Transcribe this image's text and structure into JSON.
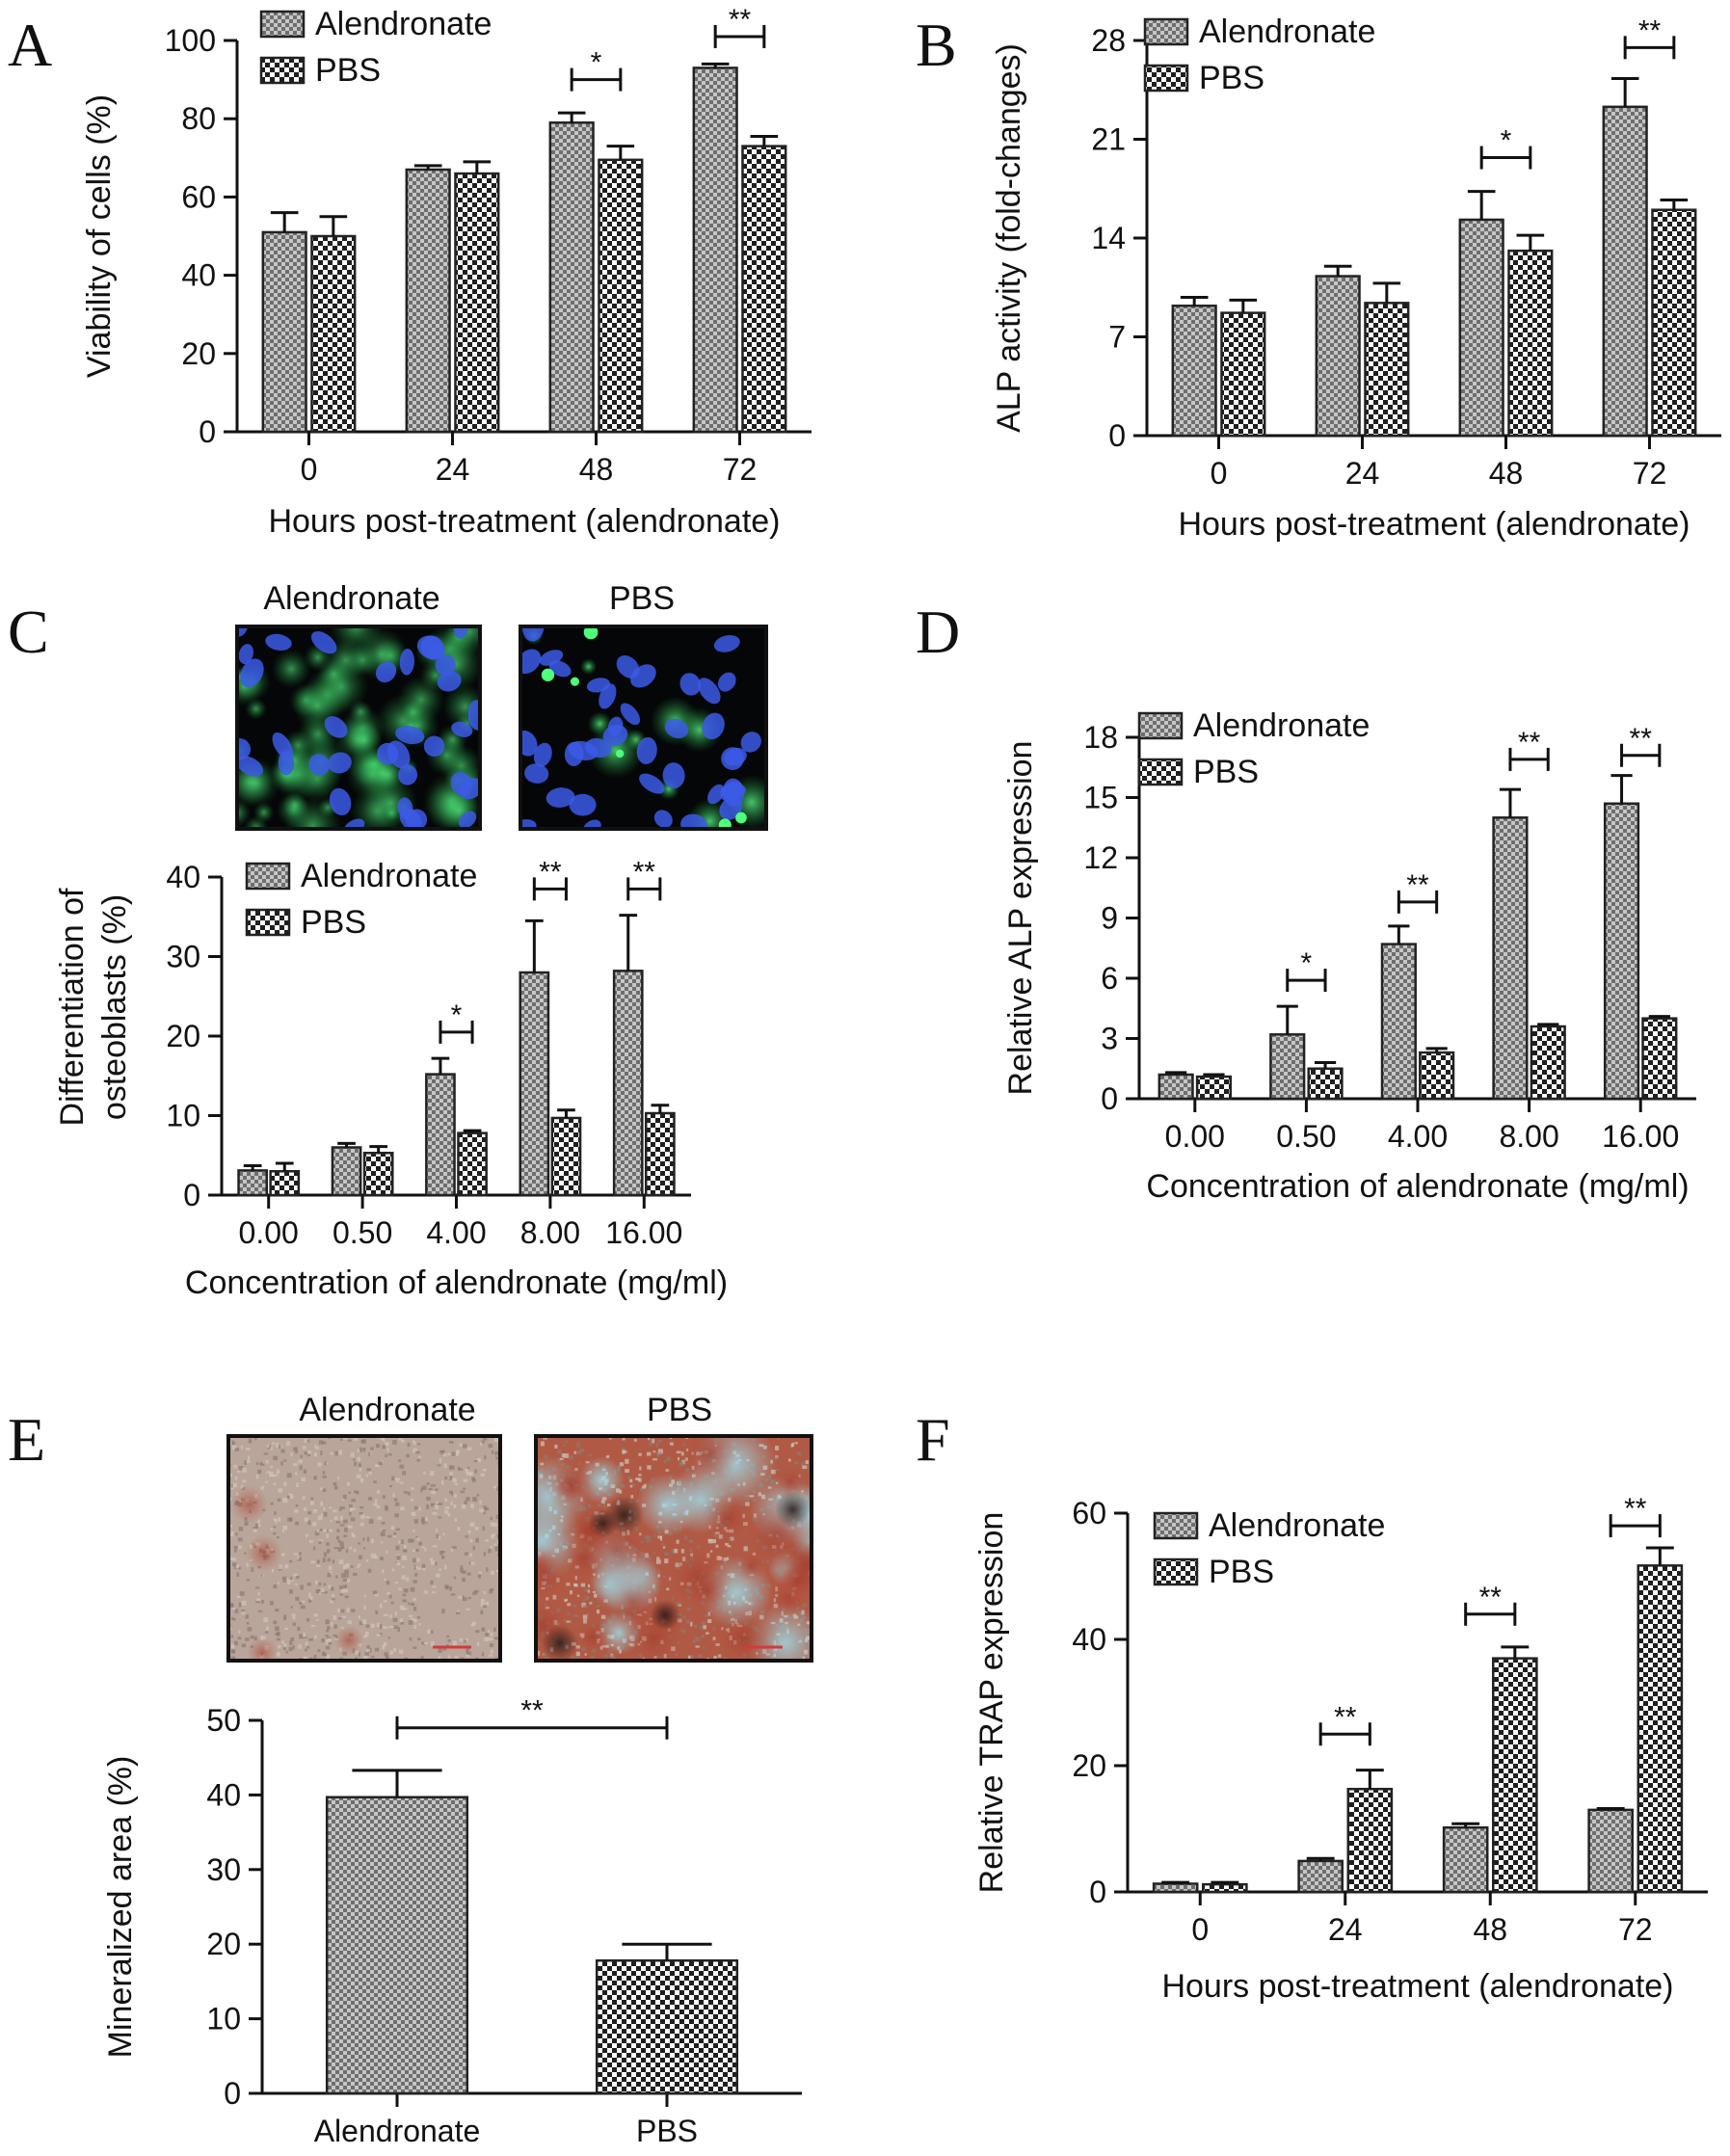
{
  "colors": {
    "axis": "#111111",
    "bar_outline": "#222222",
    "alendronate_fill": "#9a9a9a",
    "pbs_fill": "#ffffff",
    "pbs_check": "#222222"
  },
  "micrographs": {
    "C": {
      "left_label": "Alendronate",
      "right_label": "PBS"
    },
    "E": {
      "left_label": "Alendronate",
      "right_label": "PBS"
    }
  },
  "chart_data": [
    {
      "panel": "A",
      "type": "bar",
      "categories": [
        "0",
        "24",
        "48",
        "72"
      ],
      "xlabel": "Hours post-treatment (alendronate)",
      "ylabel": "Viability of cells (%)",
      "ylim": [
        0,
        100
      ],
      "yticks": [
        "0",
        "20",
        "40",
        "60",
        "80",
        "100"
      ],
      "legend_position": "top-left",
      "series": [
        {
          "name": "Alendronate",
          "values": [
            51,
            67,
            79,
            93
          ],
          "errors": [
            5,
            1,
            2.5,
            1
          ]
        },
        {
          "name": "PBS",
          "values": [
            50,
            66,
            69.5,
            73
          ],
          "errors": [
            5,
            3,
            3.5,
            2.5
          ]
        }
      ],
      "significance": [
        {
          "category": 2,
          "label": "*",
          "level": 90
        },
        {
          "category": 3,
          "label": "**",
          "level": 101
        }
      ]
    },
    {
      "panel": "B",
      "type": "bar",
      "categories": [
        "0",
        "24",
        "48",
        "72"
      ],
      "xlabel": "Hours post-treatment (alendronate)",
      "ylabel": "ALP activity (fold-changes)",
      "ylim": [
        0,
        28
      ],
      "yticks": [
        "0",
        "7",
        "14",
        "21",
        "28"
      ],
      "legend_position": "top-left",
      "series": [
        {
          "name": "Alendronate",
          "values": [
            9.2,
            11.3,
            15.3,
            23.3
          ],
          "errors": [
            0.6,
            0.7,
            2.0,
            2.0
          ]
        },
        {
          "name": "PBS",
          "values": [
            8.7,
            9.4,
            13.1,
            16.0
          ],
          "errors": [
            0.9,
            1.4,
            1.1,
            0.7
          ]
        }
      ],
      "significance": [
        {
          "category": 2,
          "label": "*",
          "level": 19.7
        },
        {
          "category": 3,
          "label": "**",
          "level": 27.5
        }
      ]
    },
    {
      "panel": "C",
      "type": "bar",
      "categories": [
        "0.00",
        "0.50",
        "4.00",
        "8.00",
        "16.00"
      ],
      "xlabel": "Concentration of alendronate (mg/ml)",
      "ylabel_lines": [
        "Differentiation of",
        "osteoblasts (%)"
      ],
      "ylim": [
        0,
        40
      ],
      "yticks": [
        "0",
        "10",
        "20",
        "30",
        "40"
      ],
      "legend_position": "top-left",
      "series": [
        {
          "name": "Alendronate",
          "values": [
            3.1,
            6.0,
            15.2,
            28.0,
            28.2
          ],
          "errors": [
            0.6,
            0.5,
            2.0,
            6.5,
            7.0
          ]
        },
        {
          "name": "PBS",
          "values": [
            3.0,
            5.3,
            7.8,
            9.7,
            10.3
          ],
          "errors": [
            1.0,
            0.8,
            0.3,
            1.0,
            1.0
          ]
        }
      ],
      "significance": [
        {
          "category": 2,
          "label": "*",
          "level": 20.5
        },
        {
          "category": 3,
          "label": "**",
          "level": 38.5
        },
        {
          "category": 4,
          "label": "**",
          "level": 38.5
        }
      ]
    },
    {
      "panel": "D",
      "type": "bar",
      "categories": [
        "0.00",
        "0.50",
        "4.00",
        "8.00",
        "16.00"
      ],
      "xlabel": "Concentration of alendronate (mg/ml)",
      "ylabel": "Relative ALP expression",
      "ylim": [
        0,
        18
      ],
      "yticks": [
        "0",
        "3",
        "6",
        "9",
        "12",
        "15",
        "18"
      ],
      "legend_position": "top-left",
      "series": [
        {
          "name": "Alendronate",
          "values": [
            1.2,
            3.2,
            7.7,
            14.0,
            14.7
          ],
          "errors": [
            0.1,
            1.4,
            0.9,
            1.4,
            1.4
          ]
        },
        {
          "name": "PBS",
          "values": [
            1.1,
            1.5,
            2.3,
            3.6,
            4.0
          ],
          "errors": [
            0.1,
            0.3,
            0.2,
            0.1,
            0.1
          ]
        }
      ],
      "significance": [
        {
          "category": 1,
          "label": "*",
          "level": 5.9
        },
        {
          "category": 2,
          "label": "**",
          "level": 9.8
        },
        {
          "category": 3,
          "label": "**",
          "level": 16.9
        },
        {
          "category": 4,
          "label": "**",
          "level": 17.1
        }
      ]
    },
    {
      "panel": "E",
      "type": "bar",
      "categories": [
        "Alendronate",
        "PBS"
      ],
      "xlabel": "",
      "ylabel": "Mineralized area (%)",
      "ylim": [
        0,
        50
      ],
      "yticks": [
        "0",
        "10",
        "20",
        "30",
        "40",
        "50"
      ],
      "series": [
        {
          "values": [
            39.7,
            17.8
          ],
          "errors": [
            3.6,
            2.2
          ]
        }
      ],
      "significance": [
        {
          "from": 0,
          "to": 1,
          "label": "**",
          "level": 49
        }
      ]
    },
    {
      "panel": "F",
      "type": "bar",
      "categories": [
        "0",
        "24",
        "48",
        "72"
      ],
      "xlabel": "Hours post-treatment (alendronate)",
      "ylabel": "Relative TRAP expression",
      "ylim": [
        0,
        60
      ],
      "yticks": [
        "0",
        "20",
        "40",
        "60"
      ],
      "legend_position": "top-left",
      "series": [
        {
          "name": "Alendronate",
          "values": [
            1.3,
            4.9,
            10.2,
            13.0
          ],
          "errors": [
            0.2,
            0.4,
            0.6,
            0.2
          ]
        },
        {
          "name": "PBS",
          "values": [
            1.2,
            16.3,
            37.0,
            51.7
          ],
          "errors": [
            0.3,
            3.0,
            1.8,
            2.8
          ]
        }
      ],
      "significance": [
        {
          "category": 1,
          "label": "**",
          "level": 25
        },
        {
          "category": 2,
          "label": "**",
          "level": 44
        },
        {
          "category": 3,
          "label": "**",
          "level": 58
        }
      ]
    }
  ]
}
